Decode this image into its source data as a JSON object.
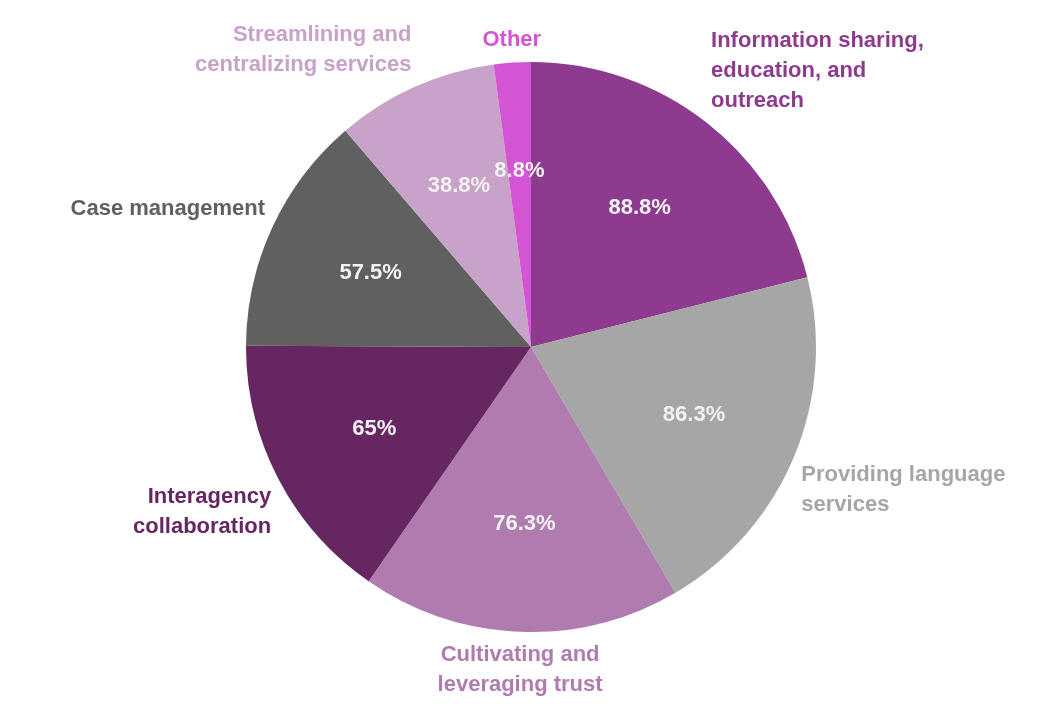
{
  "chart_data": {
    "type": "pie",
    "categories": [
      "Information sharing, education, and outreach",
      "Providing language services",
      "Cultivating and leveraging trust",
      "Interagency collaboration",
      "Case management",
      "Streamlining and centralizing services",
      "Other"
    ],
    "values": [
      88.8,
      86.3,
      76.3,
      65,
      57.5,
      38.8,
      8.8
    ],
    "value_labels": [
      "88.8%",
      "86.3%",
      "76.3%",
      "65%",
      "57.5%",
      "38.8%",
      "8.8%"
    ],
    "colors": [
      "#8e3a8e",
      "#a6a6a6",
      "#b07cb0",
      "#662662",
      "#606060",
      "#c8a2c8",
      "#d455d4"
    ],
    "legend": false
  }
}
